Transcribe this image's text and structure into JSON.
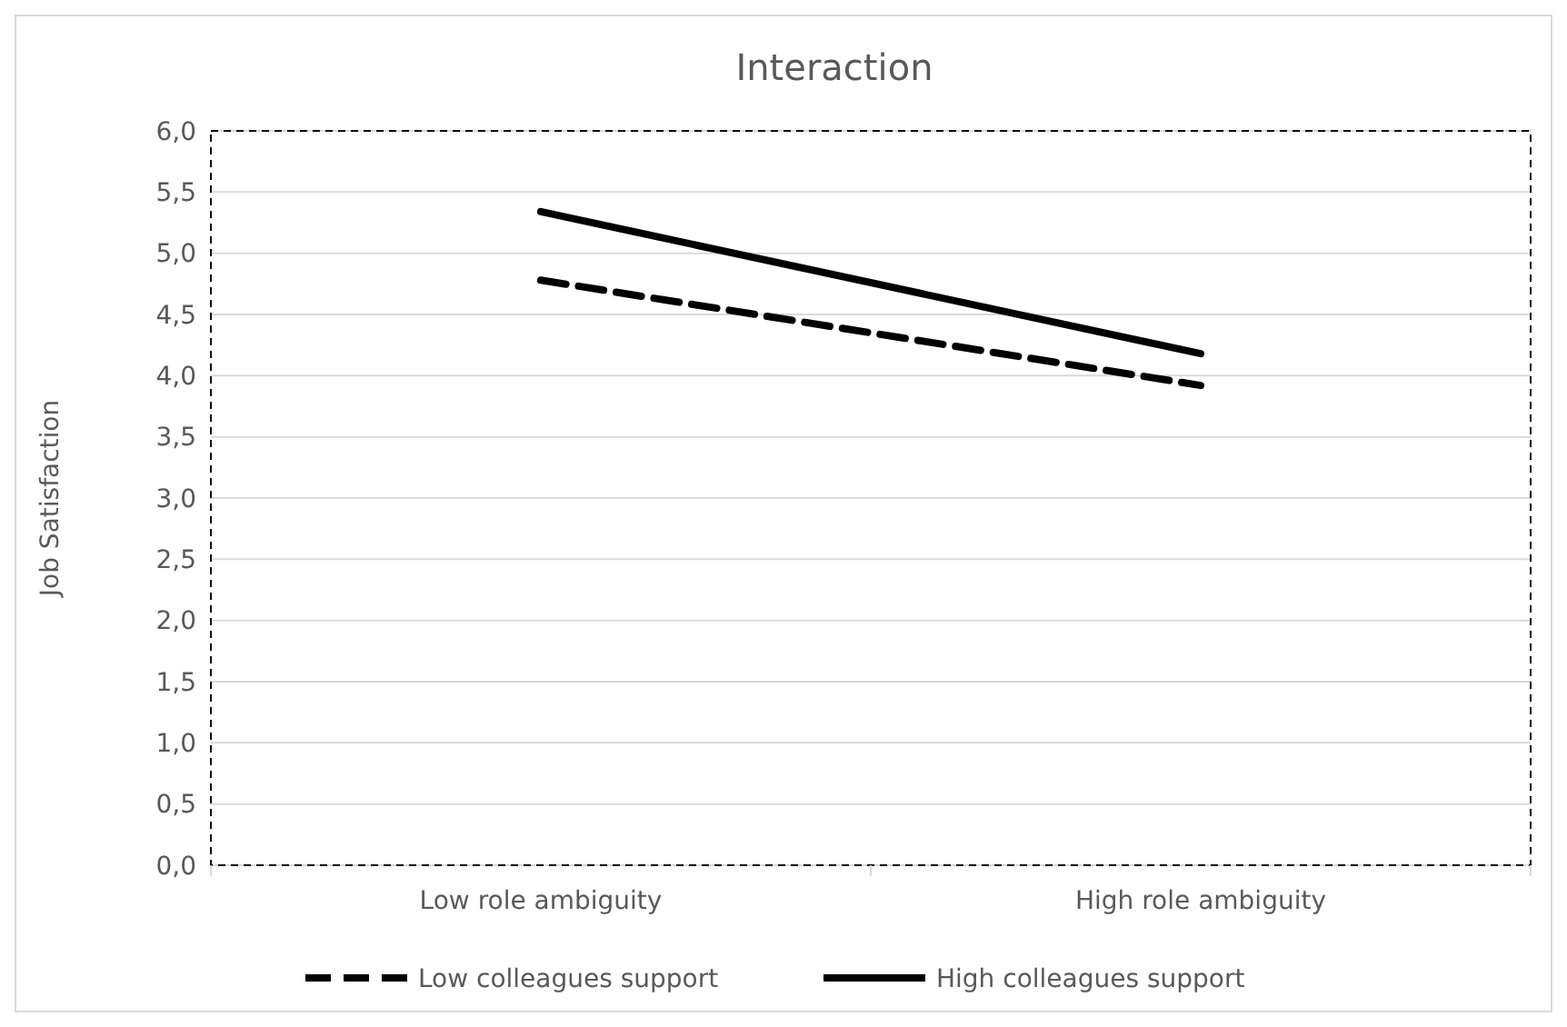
{
  "chart_data": {
    "type": "line",
    "title": "Interaction",
    "ylabel": "Job Satisfaction",
    "categories": [
      "Low role ambiguity",
      "High role ambiguity"
    ],
    "series": [
      {
        "name": "Low colleagues support",
        "color": "#000000",
        "values": [
          4.78,
          3.92
        ],
        "line_style": "dashed"
      },
      {
        "name": "High colleagues support",
        "color": "#000000",
        "values": [
          5.34,
          4.18
        ],
        "line_style": "solid"
      }
    ],
    "ylim": [
      0,
      6
    ],
    "yticks": [
      {
        "value": 0,
        "label": "0,0"
      },
      {
        "value": 0.5,
        "label": "0,5"
      },
      {
        "value": 1,
        "label": "1,0"
      },
      {
        "value": 1.5,
        "label": "1,5"
      },
      {
        "value": 2,
        "label": "2,0"
      },
      {
        "value": 2.5,
        "label": "2,5"
      },
      {
        "value": 3,
        "label": "3,0"
      },
      {
        "value": 3.5,
        "label": "3,5"
      },
      {
        "value": 4,
        "label": "4,0"
      },
      {
        "value": 4.5,
        "label": "4,5"
      },
      {
        "value": 5,
        "label": "5,0"
      },
      {
        "value": 5.5,
        "label": "5,5"
      },
      {
        "value": 6,
        "label": "6,0"
      }
    ],
    "grid": "y",
    "legend": "bottom",
    "marker": "none"
  }
}
